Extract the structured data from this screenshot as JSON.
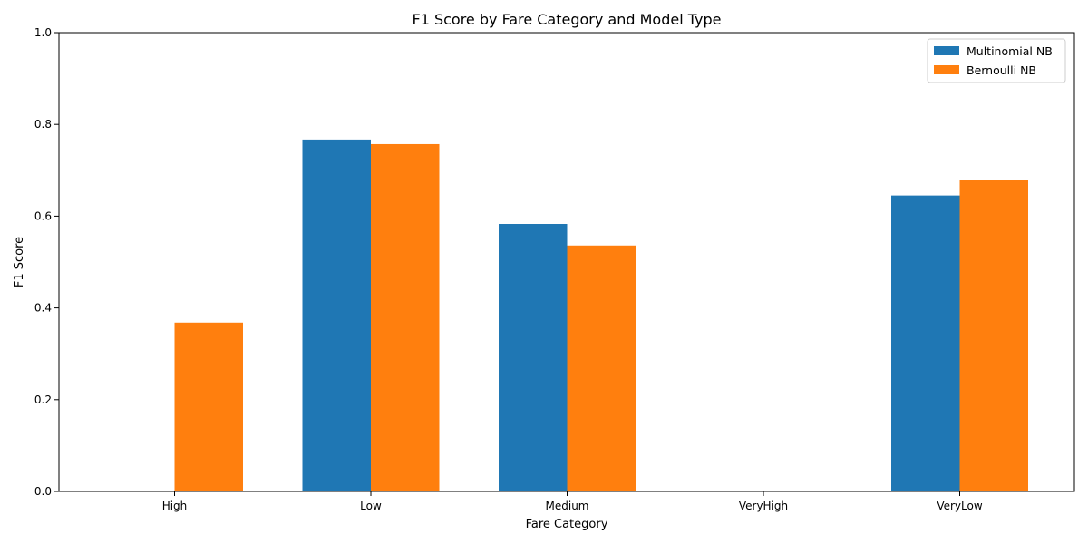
{
  "chart_data": {
    "type": "bar",
    "title": "F1 Score by Fare Category and Model Type",
    "xlabel": "Fare Category",
    "ylabel": "F1 Score",
    "categories": [
      "High",
      "Low",
      "Medium",
      "VeryHigh",
      "VeryLow"
    ],
    "series": [
      {
        "name": "Multinomial NB",
        "color": "#1f77b4",
        "values": [
          0.0,
          0.767,
          0.583,
          0.0,
          0.645
        ]
      },
      {
        "name": "Bernoulli NB",
        "color": "#ff7f0e",
        "values": [
          0.368,
          0.757,
          0.536,
          0.0,
          0.678
        ]
      }
    ],
    "ylim": [
      0,
      1.0
    ],
    "yticks": [
      "0.0",
      "0.2",
      "0.4",
      "0.6",
      "0.8",
      "1.0"
    ],
    "grid": false,
    "legend_position": "top-right"
  }
}
